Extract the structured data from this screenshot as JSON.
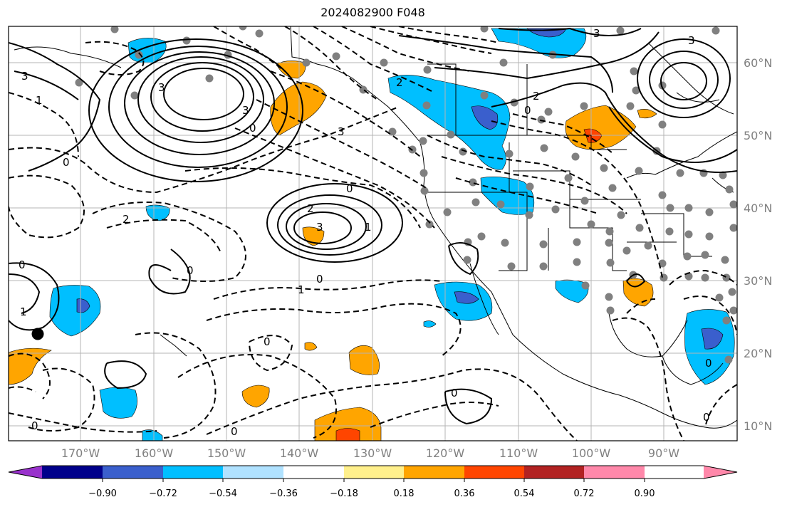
{
  "title": "2024082900 F048",
  "longitude_labels": [
    "170°W",
    "160°W",
    "150°W",
    "140°W",
    "130°W",
    "120°W",
    "110°W",
    "100°W",
    "90°W"
  ],
  "latitude_labels": [
    "60°N",
    "50°N",
    "40°N",
    "30°N",
    "20°N",
    "10°N"
  ],
  "colorbar": {
    "colors": [
      "#9932cc",
      "#00008b",
      "#3a5fcd",
      "#00bfff",
      "#b0e2ff",
      "#ffffff",
      "#fff08c",
      "#ffa500",
      "#ff4500",
      "#b22222",
      "#ff88aa"
    ],
    "tick_labels": [
      "−0.90",
      "−0.72",
      "−0.54",
      "−0.36",
      "−0.18",
      "0.18",
      "0.36",
      "0.54",
      "0.72",
      "0.90"
    ]
  },
  "contour_labels": [
    "1",
    "3",
    "3",
    "0",
    "2",
    "3",
    "0",
    "0",
    "2",
    "3",
    "1",
    "0",
    "0",
    "0",
    "0",
    "2",
    "3",
    "2",
    "0",
    "3",
    "3",
    "1",
    "1",
    "0",
    "0",
    "0",
    "0",
    "0"
  ],
  "styles": {
    "grid_color": "#b4b4b4",
    "contour_color": "#000000",
    "station_color": "#808080"
  }
}
